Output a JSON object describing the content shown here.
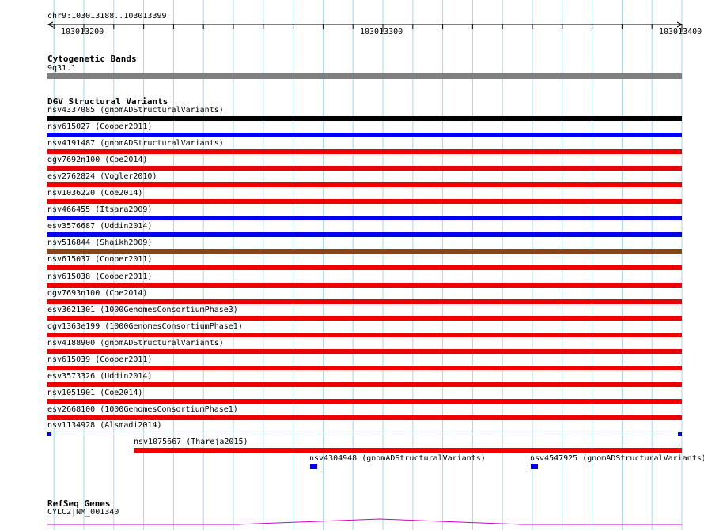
{
  "ruler": {
    "range_label": "chr9:103013188..103013399",
    "ticks": [
      {
        "label": "103013200",
        "pos": 103013200
      },
      {
        "label": "103013300",
        "pos": 103013300
      },
      {
        "label": "103013400",
        "pos": 103013400
      }
    ]
  },
  "view": {
    "start": 103013188,
    "end": 103013399
  },
  "cytoband": {
    "title": "Cytogenetic Bands",
    "band": "9q31.1",
    "color": "#808080"
  },
  "dgv": {
    "title": "DGV Structural Variants",
    "colors": {
      "black": "#000000",
      "blue": "#0000ee",
      "red": "#ee0000",
      "brown": "#8b4513"
    },
    "features": [
      {
        "label": "nsv4337085 (gnomADStructuralVariants)",
        "color": "#000000"
      },
      {
        "label": "nsv615027 (Cooper2011)",
        "color": "#0000ee"
      },
      {
        "label": "nsv4191487 (gnomADStructuralVariants)",
        "color": "#ee0000"
      },
      {
        "label": "dgv7692n100 (Coe2014)",
        "color": "#ee0000"
      },
      {
        "label": "esv2762824 (Vogler2010)",
        "color": "#ee0000"
      },
      {
        "label": "nsv1036220 (Coe2014)",
        "color": "#ee0000"
      },
      {
        "label": "nsv466455 (Itsara2009)",
        "color": "#0000ee"
      },
      {
        "label": "esv3576687 (Uddin2014)",
        "color": "#0000ee"
      },
      {
        "label": "nsv516844 (Shaikh2009)",
        "color": "#8b4513"
      },
      {
        "label": "nsv615037 (Cooper2011)",
        "color": "#ee0000"
      },
      {
        "label": "nsv615038 (Cooper2011)",
        "color": "#ee0000"
      },
      {
        "label": "dgv7693n100 (Coe2014)",
        "color": "#ee0000"
      },
      {
        "label": "esv3621301 (1000GenomesConsortiumPhase3)",
        "color": "#ee0000"
      },
      {
        "label": "dgv1363e199 (1000GenomesConsortiumPhase1)",
        "color": "#ee0000"
      },
      {
        "label": "nsv4188900 (gnomADStructuralVariants)",
        "color": "#ee0000"
      },
      {
        "label": "nsv615039 (Cooper2011)",
        "color": "#ee0000"
      },
      {
        "label": "esv3573326 (Uddin2014)",
        "color": "#ee0000"
      },
      {
        "label": "nsv1051901 (Coe2014)",
        "color": "#ee0000"
      },
      {
        "label": "esv2668100 (1000GenomesConsortiumPhase1)",
        "color": "#ee0000"
      }
    ],
    "alsmadi": {
      "label": "nsv1134928 (Alsmadi2014)",
      "color": "#0000ee"
    },
    "thareja": {
      "label": "nsv1075667 (Thareja2015)",
      "color": "#ee0000"
    },
    "small": [
      {
        "label": "nsv4304948 (gnomADStructuralVariants)",
        "color": "#0000ee"
      },
      {
        "label": "nsv4547925 (gnomADStructuralVariants)",
        "color": "#0000ee"
      }
    ]
  },
  "refseq": {
    "title": "RefSeq Genes",
    "gene_label": "CYLC2|NM_001340",
    "color": "#cc00cc"
  }
}
